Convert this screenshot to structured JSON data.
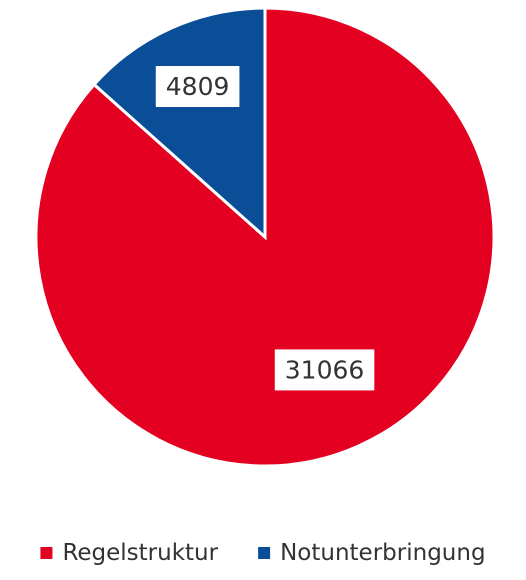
{
  "chart_data": {
    "type": "pie",
    "title": "",
    "slices": [
      {
        "label": "Regelstruktur",
        "value": 31066,
        "color": "#e30021"
      },
      {
        "label": "Notunterbringung",
        "value": 4809,
        "color": "#0b4e98"
      }
    ],
    "data_labels": [
      "31066",
      "4809"
    ],
    "legend": {
      "position": "bottom",
      "entries": [
        "Regelstruktur",
        "Notunterbringung"
      ]
    },
    "start": "12 o'clock",
    "direction": "clockwise",
    "slice_border_color": "#ffffff"
  }
}
